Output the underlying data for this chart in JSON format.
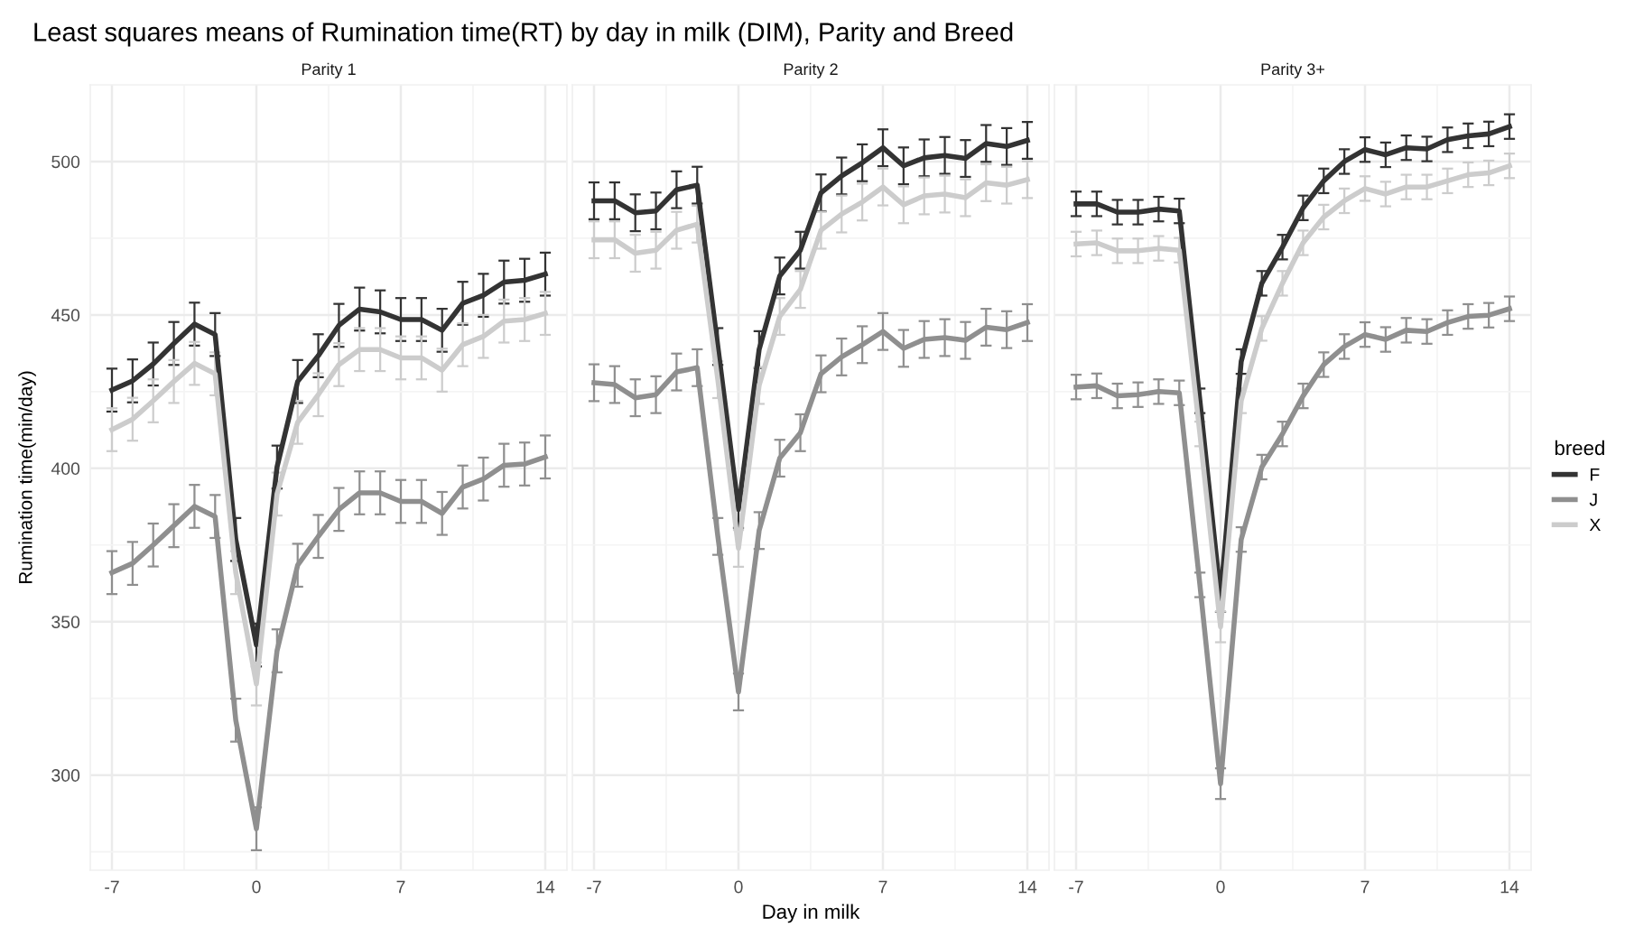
{
  "chart_data": [
    {
      "type": "line",
      "title": "Least squares means of Rumination time(RT) by day in milk (DIM), Parity and Breed",
      "subtitle": "Parity 1",
      "ylabel": "Rumination time(min/day)",
      "legend_title": "breed",
      "legend": "right",
      "x": [
        -7,
        -6,
        -5,
        -4,
        -3,
        -2,
        -1,
        0,
        1,
        2,
        3,
        4,
        5,
        6,
        7,
        8,
        9,
        10,
        11,
        12,
        13,
        14
      ],
      "xlim": [
        -8.05,
        15.05
      ],
      "xticks": [
        -7,
        0,
        7,
        14
      ],
      "ylim": [
        269,
        525
      ],
      "yticks": [
        300,
        350,
        400,
        450,
        500
      ],
      "grid": true,
      "line_style": "solid",
      "marker": "none",
      "series": [
        {
          "name": "F",
          "color": "#333333",
          "values": [
            425.5,
            428.5,
            434,
            440.7,
            447,
            443.6,
            376.8,
            342.4,
            400.4,
            428.3,
            436.7,
            446.6,
            451.9,
            451,
            448.5,
            448.5,
            445,
            453.8,
            456.4,
            460.7,
            461.3,
            463.3
          ],
          "errors": [
            7,
            7,
            7,
            7,
            7,
            7,
            7,
            7,
            7,
            7,
            7,
            7,
            7,
            7,
            7,
            7,
            7,
            7,
            7,
            7,
            7,
            7
          ]
        },
        {
          "name": "J",
          "color": "#8f8f8f",
          "values": [
            366,
            369,
            375,
            381.3,
            387.6,
            384.3,
            317.9,
            282.5,
            340.5,
            368.4,
            377.8,
            386.6,
            392,
            392,
            389.2,
            389.2,
            385.3,
            393.9,
            396.5,
            401,
            401.4,
            403.7
          ],
          "errors": [
            7,
            7,
            7,
            7,
            7,
            7,
            7,
            7,
            7,
            7,
            7,
            7,
            7,
            7,
            7,
            7,
            7,
            7,
            7,
            7,
            7,
            7
          ]
        },
        {
          "name": "X",
          "color": "#cccccc",
          "values": [
            412.6,
            416,
            422,
            428.3,
            434.2,
            430.8,
            366,
            329.7,
            391.6,
            415,
            424,
            433.8,
            438.7,
            438.7,
            436,
            436,
            432,
            440.3,
            443,
            448,
            448.5,
            450.5
          ],
          "errors": [
            7,
            7,
            7,
            7,
            7,
            7,
            7,
            7,
            7,
            7,
            7,
            7,
            7,
            7,
            7,
            7,
            7,
            7,
            7,
            7,
            7,
            7
          ]
        }
      ]
    },
    {
      "type": "line",
      "subtitle": "Parity 2",
      "xlabel": "Day in milk",
      "x": [
        -7,
        -6,
        -5,
        -4,
        -3,
        -2,
        -1,
        0,
        1,
        2,
        3,
        4,
        5,
        6,
        7,
        8,
        9,
        10,
        11,
        12,
        13,
        14
      ],
      "xlim": [
        -8.05,
        15.05
      ],
      "xticks": [
        -7,
        0,
        7,
        14
      ],
      "ylim": [
        269,
        525
      ],
      "yticks": [
        300,
        350,
        400,
        450,
        500
      ],
      "tick_labels": "x",
      "grid": true,
      "line_style": "solid",
      "marker": "none",
      "series": [
        {
          "color": "#333333",
          "values": [
            487.2,
            487.2,
            483.3,
            483.9,
            490.8,
            492.3,
            439.7,
            386.6,
            438.7,
            462.7,
            471.1,
            489.8,
            495.3,
            499.6,
            504.5,
            498.6,
            501.2,
            502,
            501,
            505.9,
            504.9,
            506.9
          ],
          "errors": [
            6,
            6,
            6,
            6,
            6,
            6,
            6,
            6,
            6,
            6,
            6,
            6,
            6,
            6,
            6,
            6,
            6,
            6,
            6,
            6,
            6,
            6
          ]
        },
        {
          "color": "#8f8f8f",
          "values": [
            427.9,
            427.3,
            423,
            424,
            431.4,
            432.8,
            377.8,
            327.1,
            379.7,
            403.3,
            411.6,
            430.8,
            436.3,
            440.3,
            444.6,
            439.1,
            442,
            442.6,
            441.7,
            446,
            445.2,
            447.5
          ],
          "errors": [
            6,
            6,
            6,
            6,
            6,
            6,
            6,
            6,
            6,
            6,
            6,
            6,
            6,
            6,
            6,
            6,
            6,
            6,
            6,
            6,
            6,
            6
          ]
        },
        {
          "color": "#cccccc",
          "values": [
            474.5,
            474.5,
            470.1,
            471.1,
            477.6,
            479.6,
            428.9,
            373.9,
            427,
            449.5,
            458.3,
            477.6,
            482.9,
            486.8,
            491.7,
            485.9,
            488.8,
            489.4,
            488.2,
            493.1,
            492.3,
            494.1
          ],
          "errors": [
            6,
            6,
            6,
            6,
            6,
            6,
            6,
            6,
            6,
            6,
            6,
            6,
            6,
            6,
            6,
            6,
            6,
            6,
            6,
            6,
            6,
            6
          ]
        }
      ]
    },
    {
      "type": "line",
      "subtitle": "Parity 3+",
      "x": [
        -7,
        -6,
        -5,
        -4,
        -3,
        -2,
        -1,
        0,
        1,
        2,
        3,
        4,
        5,
        6,
        7,
        8,
        9,
        10,
        11,
        12,
        13,
        14
      ],
      "xlim": [
        -8.05,
        15.05
      ],
      "xticks": [
        -7,
        0,
        7,
        14
      ],
      "ylim": [
        269,
        525
      ],
      "yticks": [
        300,
        350,
        400,
        450,
        500
      ],
      "tick_labels": "x",
      "grid": true,
      "line_style": "solid",
      "marker": "none",
      "series": [
        {
          "color": "#333333",
          "values": [
            486.2,
            486.2,
            483.5,
            483.5,
            484.5,
            483.9,
            422,
            358.2,
            434.8,
            460.3,
            472.1,
            484.9,
            493.7,
            500,
            503.9,
            502.2,
            504.5,
            504.1,
            507.1,
            508.4,
            509,
            511.4
          ],
          "errors": [
            4,
            4,
            4,
            4,
            4,
            4,
            4,
            5,
            4,
            4,
            4,
            4,
            4,
            4,
            4,
            4,
            4,
            4,
            4,
            4,
            4,
            4
          ]
        },
        {
          "color": "#8f8f8f",
          "values": [
            426.5,
            426.9,
            423.6,
            424,
            425,
            424.6,
            362,
            297.2,
            376.8,
            400.4,
            411.2,
            423.6,
            433.8,
            439.7,
            443.6,
            442,
            445,
            444.6,
            447.5,
            449.5,
            449.9,
            452
          ],
          "errors": [
            4,
            4,
            4,
            4,
            4,
            4,
            4,
            5,
            4,
            4,
            4,
            4,
            4,
            4,
            4,
            4,
            4,
            4,
            4,
            4,
            4,
            4
          ]
        },
        {
          "color": "#cccccc",
          "values": [
            473.1,
            473.5,
            470.9,
            470.9,
            471.7,
            471.1,
            411.2,
            348.3,
            422,
            445.6,
            460.3,
            473.5,
            481.9,
            487.2,
            491.2,
            489.4,
            491.7,
            491.7,
            493.7,
            495.7,
            496.3,
            498.6
          ],
          "errors": [
            4,
            4,
            4,
            4,
            4,
            4,
            4,
            5,
            4,
            4,
            4,
            4,
            4,
            4,
            4,
            4,
            4,
            4,
            4,
            4,
            4,
            4
          ]
        }
      ]
    }
  ]
}
